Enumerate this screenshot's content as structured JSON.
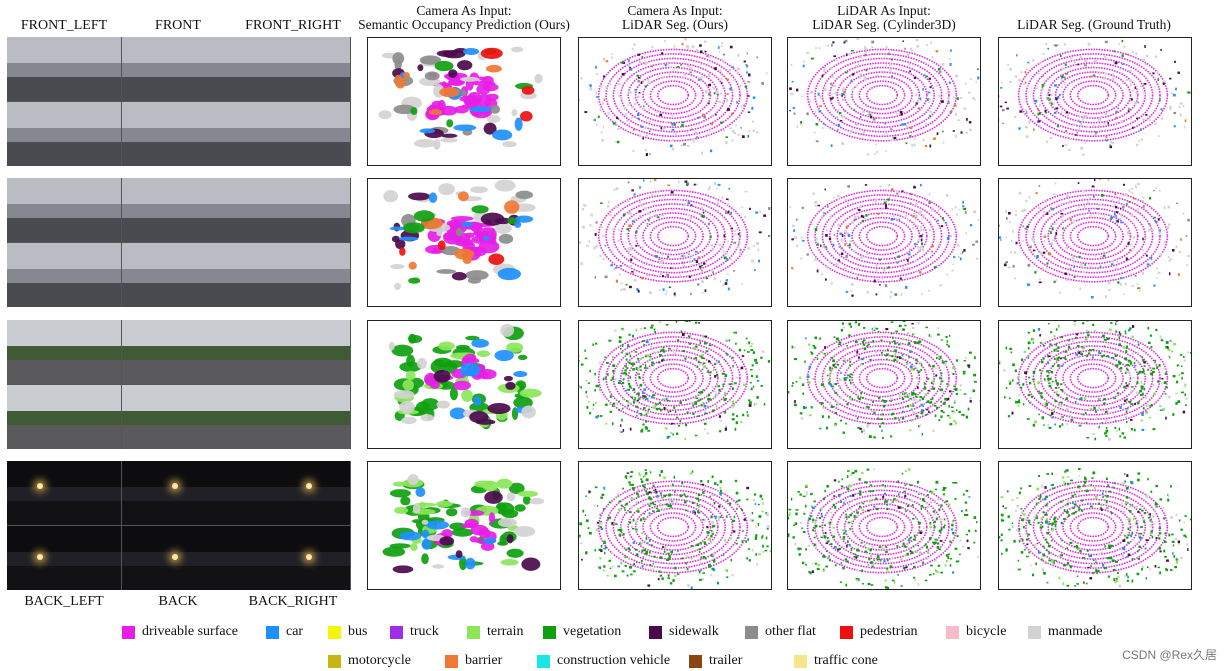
{
  "camera_labels": {
    "front_left": "FRONT_LEFT",
    "front": "FRONT",
    "front_right": "FRONT_RIGHT",
    "back_left": "BACK_LEFT",
    "back": "BACK",
    "back_right": "BACK_RIGHT"
  },
  "columns": [
    {
      "line1": "Camera As Input:",
      "line2": "Semantic Occupancy Prediction (Ours)"
    },
    {
      "line1": "Camera As Input:",
      "line2": "LiDAR Seg. (Ours)"
    },
    {
      "line1": "LiDAR As Input:",
      "line2": "LiDAR Seg. (Cylinder3D)"
    },
    {
      "line1": "",
      "line2": "LiDAR Seg. (Ground Truth)"
    }
  ],
  "scenes": [
    {
      "lighting": "overcast",
      "dominant": "driveable surface"
    },
    {
      "lighting": "overcast",
      "dominant": "driveable surface"
    },
    {
      "lighting": "daylight",
      "dominant": "vegetation"
    },
    {
      "lighting": "night",
      "dominant": "vegetation"
    }
  ],
  "legend": [
    {
      "label": "driveable surface",
      "color": "#e61ee6"
    },
    {
      "label": "car",
      "color": "#1e90ff"
    },
    {
      "label": "bus",
      "color": "#f5f50a"
    },
    {
      "label": "truck",
      "color": "#9f2ee6"
    },
    {
      "label": "terrain",
      "color": "#8ce65a"
    },
    {
      "label": "vegetation",
      "color": "#0fa00f"
    },
    {
      "label": "sidewalk",
      "color": "#4b0a4b"
    },
    {
      "label": "other flat",
      "color": "#8c8c8c"
    },
    {
      "label": "pedestrian",
      "color": "#ee1010"
    },
    {
      "label": "bicycle",
      "color": "#f7bccb"
    },
    {
      "label": "manmade",
      "color": "#d2d2d2"
    },
    {
      "label": "motorcycle",
      "color": "#c8b414"
    },
    {
      "label": "barrier",
      "color": "#f07832"
    },
    {
      "label": "construction vehicle",
      "color": "#19e6e6"
    },
    {
      "label": "trailer",
      "color": "#8b4513"
    },
    {
      "label": "traffic cone",
      "color": "#f5e68c"
    }
  ],
  "watermark": "CSDN @Rex久居"
}
